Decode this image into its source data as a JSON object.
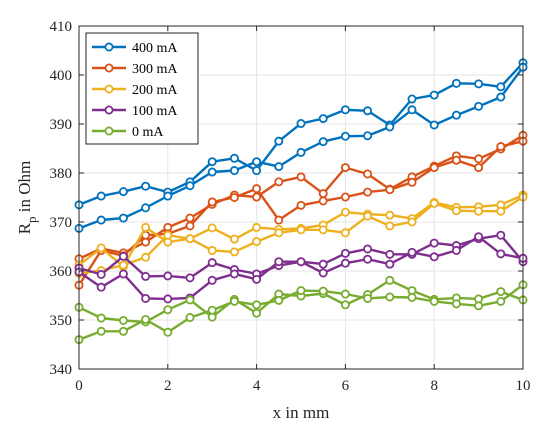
{
  "chart_data": {
    "type": "line",
    "xlabel": "x in mm",
    "ylabel_main": "R",
    "ylabel_sub": "p",
    "ylabel_rest": " in Ohm",
    "xlim": [
      0,
      10
    ],
    "ylim": [
      340,
      410
    ],
    "xticks": [
      0,
      2,
      4,
      6,
      8,
      10
    ],
    "yticks": [
      340,
      350,
      360,
      370,
      380,
      390,
      400,
      410
    ],
    "grid": true,
    "legend_position": "top-left",
    "x": [
      0,
      0.5,
      1,
      1.5,
      2,
      2.5,
      3,
      3.5,
      4,
      4.5,
      5,
      5.5,
      6,
      6.5,
      7,
      7.5,
      8,
      8.5,
      9,
      9.5,
      10
    ],
    "series": [
      {
        "name": "400 mA",
        "color": "#0072bd",
        "lines": [
          [
            373.5,
            375.3,
            376.2,
            377.3,
            376.1,
            378.2,
            382.3,
            383.0,
            380.5,
            386.5,
            390.1,
            391.1,
            392.9,
            392.7,
            389.8,
            395.1,
            395.9,
            398.3,
            398.2,
            397.6,
            402.5
          ],
          [
            368.7,
            370.4,
            370.8,
            372.9,
            375.3,
            377.4,
            380.2,
            380.5,
            382.3,
            381.3,
            384.2,
            386.4,
            387.5,
            387.6,
            389.4,
            392.9,
            389.8,
            391.8,
            393.6,
            395.5,
            401.6
          ]
        ]
      },
      {
        "name": "300 mA",
        "color": "#d95319",
        "lines": [
          [
            362.5,
            364.6,
            363.7,
            365.9,
            368.9,
            370.8,
            373.6,
            375.5,
            375.1,
            378.2,
            379.2,
            375.8,
            381.1,
            379.8,
            376.7,
            379.2,
            381.4,
            383.5,
            382.9,
            384.9,
            387.7
          ],
          [
            357.1,
            364.2,
            363.1,
            367.3,
            367.6,
            369.2,
            374.1,
            375.0,
            376.8,
            370.4,
            373.4,
            374.3,
            375.1,
            376.1,
            376.6,
            378.1,
            381.1,
            382.6,
            381.1,
            385.4,
            386.5
          ]
        ]
      },
      {
        "name": "200 mA",
        "color": "#edb120",
        "lines": [
          [
            361.2,
            364.7,
            360.9,
            368.9,
            365.9,
            366.6,
            368.8,
            366.5,
            368.9,
            368.5,
            368.7,
            369.4,
            372.0,
            371.6,
            371.4,
            370.7,
            374.0,
            373.0,
            373.1,
            373.5,
            375.5
          ],
          [
            359.5,
            360.1,
            361.2,
            362.8,
            367.3,
            366.6,
            364.2,
            363.9,
            366.0,
            367.8,
            368.4,
            368.4,
            367.8,
            371.2,
            369.2,
            370.0,
            373.8,
            372.3,
            372.2,
            372.2,
            375.1
          ]
        ]
      },
      {
        "name": "100 mA",
        "color": "#7e2f8e",
        "lines": [
          [
            360.6,
            359.3,
            363.0,
            358.9,
            359.0,
            358.6,
            361.7,
            360.3,
            359.4,
            361.1,
            361.9,
            361.4,
            363.6,
            364.5,
            363.4,
            363.4,
            365.7,
            365.2,
            366.6,
            367.3,
            361.9
          ],
          [
            359.8,
            356.7,
            359.4,
            354.4,
            354.3,
            354.5,
            358.1,
            359.4,
            358.3,
            361.9,
            361.9,
            359.6,
            361.6,
            362.4,
            361.4,
            363.8,
            362.9,
            364.2,
            367.0,
            363.5,
            362.6
          ]
        ]
      },
      {
        "name": "0 mA",
        "color": "#77ac30",
        "lines": [
          [
            352.6,
            350.4,
            349.9,
            349.6,
            352.1,
            354.1,
            350.6,
            354.2,
            351.4,
            355.3,
            354.9,
            355.4,
            353.1,
            355.2,
            358.1,
            356.0,
            354.2,
            354.5,
            354.3,
            355.8,
            354.1
          ],
          [
            346.0,
            347.7,
            347.7,
            350.1,
            347.5,
            350.5,
            352.0,
            353.8,
            353.1,
            354.0,
            356.0,
            355.9,
            355.3,
            354.4,
            354.7,
            354.6,
            353.8,
            353.3,
            352.9,
            353.8,
            357.2
          ]
        ]
      }
    ]
  }
}
